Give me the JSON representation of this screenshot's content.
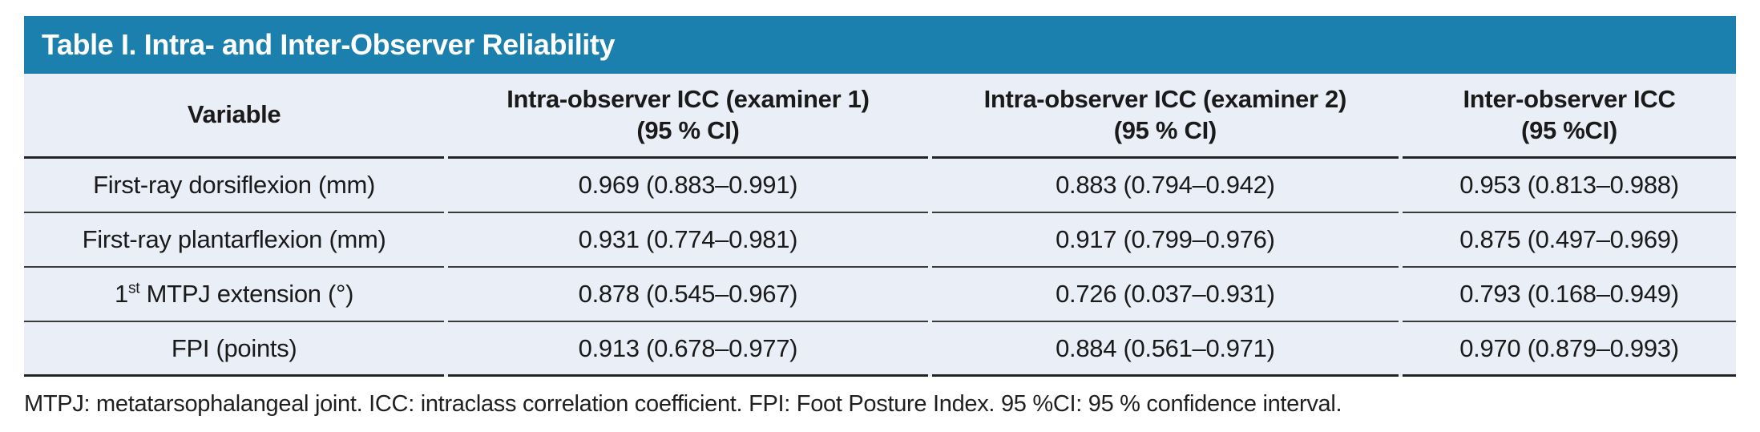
{
  "title": "Table I. Intra- and Inter-Observer Reliability",
  "colors": {
    "header_bar_bg": "#1B80AD",
    "table_body_bg": "#EAEEF7",
    "rule_line": "#2E2E2E",
    "title_text": "#FFFFFF"
  },
  "table": {
    "columns": [
      {
        "line1": "Variable",
        "line2": ""
      },
      {
        "line1": "Intra-observer ICC (examiner 1)",
        "line2": "(95 % CI)"
      },
      {
        "line1": "Intra-observer ICC (examiner 2)",
        "line2": "(95 % CI)"
      },
      {
        "line1": "Inter-observer ICC",
        "line2": "(95 %CI)"
      }
    ],
    "rows": [
      {
        "var_pre": "First-ray dorsiflexion (mm)",
        "var_sup": "",
        "var_post": "",
        "icc_examiner1": "0.969 (0.883–0.991)",
        "icc_examiner2": "0.883 (0.794–0.942)",
        "icc_inter": "0.953 (0.813–0.988)"
      },
      {
        "var_pre": "First-ray plantarflexion (mm)",
        "var_sup": "",
        "var_post": "",
        "icc_examiner1": "0.931 (0.774–0.981)",
        "icc_examiner2": "0.917 (0.799–0.976)",
        "icc_inter": "0.875 (0.497–0.969)"
      },
      {
        "var_pre": "1",
        "var_sup": "st",
        "var_post": " MTPJ extension (°)",
        "icc_examiner1": "0.878 (0.545–0.967)",
        "icc_examiner2": "0.726 (0.037–0.931)",
        "icc_inter": "0.793 (0.168–0.949)"
      },
      {
        "var_pre": "FPI (points)",
        "var_sup": "",
        "var_post": "",
        "icc_examiner1": "0.913 (0.678–0.977)",
        "icc_examiner2": "0.884 (0.561–0.971)",
        "icc_inter": "0.970 (0.879–0.993)"
      }
    ]
  },
  "footnote": "MTPJ: metatarsophalangeal joint. ICC: intraclass correlation coefficient. FPI: Foot Posture Index. 95 %CI: 95 % confidence interval."
}
